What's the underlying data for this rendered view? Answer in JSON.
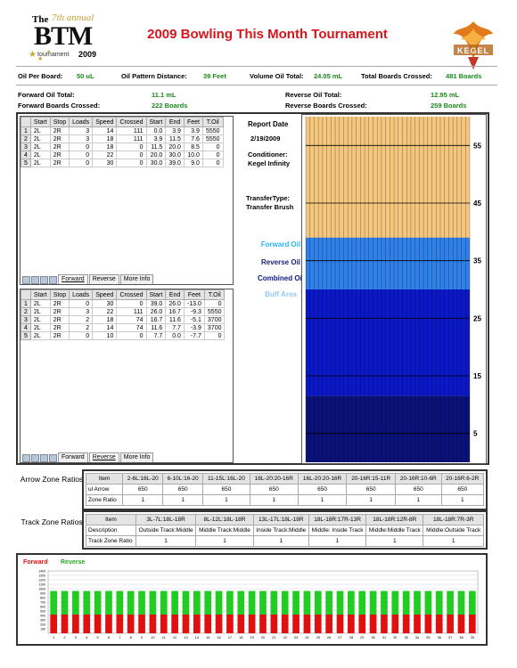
{
  "header": {
    "logo": {
      "the": "The",
      "annual": "7th annual",
      "btm": "BTM",
      "tournament": "tournament",
      "year": "2009"
    },
    "title": "2009 Bowling This Month Tournament",
    "kegel_logo": "KEGEL"
  },
  "summary": {
    "oil_per_board_label": "Oil Per Board:",
    "oil_per_board": "50 uL",
    "pattern_distance_label": "Oil Pattern Distance:",
    "pattern_distance": "39 Feet",
    "volume_label": "Volume Oil Total:",
    "volume": "24.05 mL",
    "boards_crossed_label": "Total Boards Crossed:",
    "boards_crossed": "481 Boards",
    "forward_oil_label": "Forward Oil Total:",
    "forward_oil": "11.1 mL",
    "reverse_oil_label": "Reverse Oil Total:",
    "reverse_oil": "12.95 mL",
    "forward_boards_label": "Forward Boards Crossed:",
    "forward_boards": "222 Boards",
    "reverse_boards_label": "Reverse Boards Crossed:",
    "reverse_boards": "259 Boards"
  },
  "load_table": {
    "columns": [
      "",
      "Start",
      "Stop",
      "Loads",
      "Speed",
      "Crossed",
      "Start",
      "End",
      "Feet",
      "T.Oil"
    ]
  },
  "forward_table": {
    "rows": [
      [
        "1",
        "2L",
        "2R",
        "3",
        "14",
        "111",
        "0.0",
        "3.9",
        "3.9",
        "5550"
      ],
      [
        "2",
        "2L",
        "2R",
        "3",
        "18",
        "111",
        "3.9",
        "11.5",
        "7.6",
        "5550"
      ],
      [
        "3",
        "2L",
        "2R",
        "0",
        "18",
        "0",
        "11.5",
        "20.0",
        "8.5",
        "0"
      ],
      [
        "4",
        "2L",
        "2R",
        "0",
        "22",
        "0",
        "20.0",
        "30.0",
        "10.0",
        "0"
      ],
      [
        "5",
        "2L",
        "2R",
        "0",
        "30",
        "0",
        "30.0",
        "39.0",
        "9.0",
        "0"
      ]
    ],
    "tabs": [
      "Forward",
      "Reverse",
      "More Info"
    ],
    "active_tab": 0
  },
  "reverse_table": {
    "rows": [
      [
        "1",
        "2L",
        "2R",
        "0",
        "30",
        "0",
        "39.0",
        "26.0",
        "-13.0",
        "0"
      ],
      [
        "2",
        "2L",
        "2R",
        "3",
        "22",
        "111",
        "26.0",
        "16.7",
        "-9.3",
        "5550"
      ],
      [
        "3",
        "2L",
        "2R",
        "2",
        "18",
        "74",
        "16.7",
        "11.6",
        "-5.1",
        "3700"
      ],
      [
        "4",
        "2L",
        "2R",
        "2",
        "14",
        "74",
        "11.6",
        "7.7",
        "-3.9",
        "3700"
      ],
      [
        "5",
        "2L",
        "2R",
        "0",
        "10",
        "0",
        "7.7",
        "0.0",
        "-7.7",
        "0"
      ]
    ],
    "tabs": [
      "Forward",
      "Reverse",
      "More Info"
    ],
    "active_tab": 1
  },
  "report": {
    "date_label": "Report Date",
    "date": "2/19/2009",
    "conditioner_label": "Conditioner:",
    "conditioner": "Kegel Infinity",
    "transfer_label": "TransferType:",
    "transfer": "Transfer Brush",
    "legend": [
      {
        "label": "Forward Oil",
        "color": "#29b6f6"
      },
      {
        "label": "Reverse Oil",
        "color": "#1a237e"
      },
      {
        "label": "Combined Oil",
        "color": "#0d1a8c"
      },
      {
        "label": "Buff Area",
        "color": "#90caf9"
      }
    ]
  },
  "lane": {
    "ticks": [
      "55",
      "45",
      "35",
      "25",
      "15",
      "5"
    ],
    "colors": {
      "buff": "#f5c77e",
      "forward": "#2f80e8",
      "combined": "#0a18c8",
      "dark": "#0a127a"
    }
  },
  "arrow_zone": {
    "side_label": "Arrow Zone Ratios",
    "headers": [
      "Item",
      "2-6L:16L-20",
      "6-10L:16-20",
      "11-15L:16L-20",
      "16L-20:20-16R",
      "16L-20:20-16R",
      "20-16R:15-11R",
      "20-16R:10-6R",
      "20-16R:6-2R"
    ],
    "rows": [
      [
        "ul Arrow",
        "650",
        "650",
        "650",
        "650",
        "650",
        "650",
        "650",
        "650"
      ],
      [
        "Zone Ratio",
        "1",
        "1",
        "1",
        "1",
        "1",
        "1",
        "1",
        "1"
      ]
    ]
  },
  "track_zone": {
    "side_label": "Track Zone Ratios",
    "headers": [
      "Item",
      "3L-7L:18L-18R",
      "8L-12L:18L-18R",
      "13L-17L:18L-18R",
      "18L-18R:17R-13R",
      "18L-18R:12R-8R",
      "18L-18R:7R-3R"
    ],
    "rows": [
      [
        "Description",
        "Outside Track:Middle",
        "Middle Track:Middle",
        "Inside Track:Middle",
        "Middle: Inside Track",
        "Middle:Middle Track",
        "Middle:Outside Track"
      ],
      [
        "Track Zone Ratio",
        "1",
        "1",
        "1",
        "1",
        "1",
        "1"
      ]
    ]
  },
  "bar_chart": {
    "legend_forward": "Forward",
    "legend_reverse": "Reverse",
    "forward_color": "#e01010",
    "reverse_color": "#22cc22",
    "y_ticks": [
      "1400",
      "1300",
      "1200",
      "1100",
      "1000",
      "900",
      "800",
      "700",
      "600",
      "500",
      "400",
      "300",
      "200",
      "100"
    ],
    "x_ticks": [
      "1",
      "2",
      "3",
      "4",
      "5",
      "6",
      "7",
      "8",
      "9",
      "10",
      "11",
      "12",
      "13",
      "14",
      "15",
      "16",
      "17",
      "18",
      "19",
      "20",
      "21",
      "22",
      "23",
      "24",
      "25",
      "26",
      "27",
      "28",
      "29",
      "30",
      "31",
      "32",
      "33",
      "34",
      "35",
      "36",
      "37",
      "38",
      "39"
    ],
    "ymax": 1400,
    "forward_values": [
      420,
      420,
      420,
      420,
      420,
      420,
      420,
      420,
      420,
      420,
      420,
      420,
      420,
      420,
      420,
      420,
      420,
      420,
      420,
      420,
      420,
      420,
      420,
      420,
      420,
      420,
      420,
      420,
      420,
      420,
      420,
      420,
      420,
      420,
      420,
      420,
      420,
      420,
      420
    ],
    "reverse_values": [
      530,
      530,
      530,
      530,
      530,
      530,
      530,
      530,
      530,
      530,
      530,
      530,
      530,
      530,
      530,
      530,
      530,
      530,
      530,
      530,
      530,
      530,
      530,
      530,
      530,
      530,
      530,
      530,
      530,
      530,
      530,
      530,
      530,
      530,
      530,
      530,
      530,
      530,
      530
    ]
  }
}
